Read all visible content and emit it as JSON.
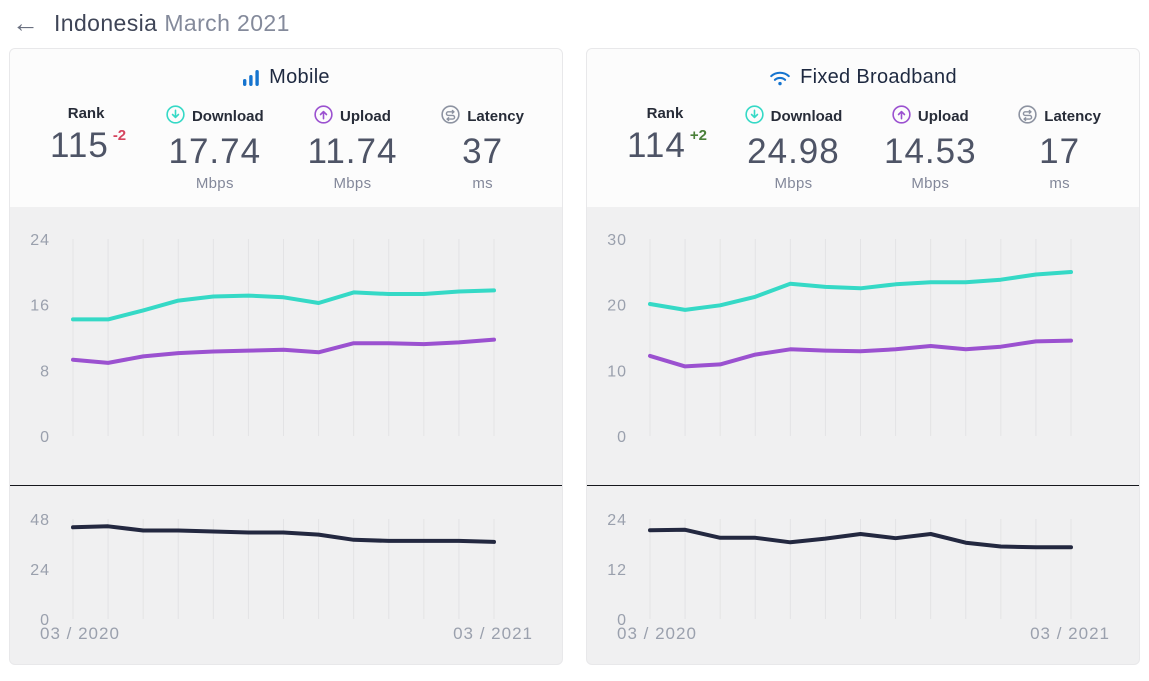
{
  "header": {
    "back_icon": "←",
    "title_country": "Indonesia",
    "title_period": "March 2021"
  },
  "colors": {
    "download": "#35d9c6",
    "upload": "#9b51d0",
    "latency_line": "#232840",
    "brand_blue": "#1574cf",
    "latency_icon_gray": "#8d93a1",
    "grid": "#e3e3e5",
    "axis_label": "#9aa0ad",
    "axis_line": "#16181d",
    "rank_down": "#d5455f",
    "rank_up": "#4a8039"
  },
  "cards": [
    {
      "id": "mobile",
      "title": "Mobile",
      "stats": {
        "rank": {
          "label": "Rank",
          "value": "115",
          "change": "-2",
          "change_dir": "down"
        },
        "download": {
          "label": "Download",
          "value": "17.74",
          "unit": "Mbps"
        },
        "upload": {
          "label": "Upload",
          "value": "11.74",
          "unit": "Mbps"
        },
        "latency": {
          "label": "Latency",
          "value": "37",
          "unit": "ms"
        }
      }
    },
    {
      "id": "fixed",
      "title": "Fixed Broadband",
      "stats": {
        "rank": {
          "label": "Rank",
          "value": "114",
          "change": "+2",
          "change_dir": "up"
        },
        "download": {
          "label": "Download",
          "value": "24.98",
          "unit": "Mbps"
        },
        "upload": {
          "label": "Upload",
          "value": "14.53",
          "unit": "Mbps"
        },
        "latency": {
          "label": "Latency",
          "value": "17",
          "unit": "ms"
        }
      }
    }
  ],
  "chart_data": [
    {
      "id": "mobile-speed",
      "kind": "speed",
      "type": "line",
      "title": "Mobile download / upload speeds over time",
      "unit": "Mbps",
      "ylim": [
        0,
        28
      ],
      "yticks": [
        24,
        16,
        8,
        0
      ],
      "grid": "vertical",
      "x_range": [
        "03 / 2020",
        "03 / 2021"
      ],
      "points_per_series": 13,
      "series": [
        {
          "name": "Download",
          "color": "#35d9c6",
          "values": [
            14.2,
            14.2,
            15.3,
            16.5,
            17.0,
            17.1,
            16.9,
            16.2,
            17.5,
            17.3,
            17.3,
            17.6,
            17.74
          ]
        },
        {
          "name": "Upload",
          "color": "#9b51d0",
          "values": [
            9.3,
            8.9,
            9.7,
            10.1,
            10.3,
            10.4,
            10.5,
            10.2,
            11.3,
            11.3,
            11.2,
            11.4,
            11.74
          ]
        }
      ]
    },
    {
      "id": "mobile-latency",
      "kind": "latency",
      "type": "line",
      "title": "Mobile latency over time",
      "unit": "ms",
      "ylim": [
        0,
        52
      ],
      "yticks": [
        48,
        24,
        0
      ],
      "grid": "vertical",
      "xlabels": [
        "03 / 2020",
        "03 / 2021"
      ],
      "series": [
        {
          "name": "Latency",
          "color": "#232840",
          "values": [
            44,
            44.5,
            42.5,
            42.5,
            42,
            41.5,
            41.5,
            40.5,
            38,
            37.5,
            37.5,
            37.5,
            37
          ]
        }
      ]
    },
    {
      "id": "fixed-speed",
      "kind": "speed",
      "type": "line",
      "title": "Fixed broadband download / upload speeds over time",
      "unit": "Mbps",
      "ylim": [
        0,
        35
      ],
      "yticks": [
        30,
        20,
        10,
        0
      ],
      "grid": "vertical",
      "x_range": [
        "03 / 2020",
        "03 / 2021"
      ],
      "points_per_series": 13,
      "series": [
        {
          "name": "Download",
          "color": "#35d9c6",
          "values": [
            20.1,
            19.2,
            19.9,
            21.2,
            23.2,
            22.7,
            22.5,
            23.1,
            23.4,
            23.4,
            23.8,
            24.6,
            24.98
          ]
        },
        {
          "name": "Upload",
          "color": "#9b51d0",
          "values": [
            12.2,
            10.6,
            10.9,
            12.4,
            13.2,
            13.0,
            12.9,
            13.2,
            13.7,
            13.2,
            13.6,
            14.4,
            14.53
          ]
        }
      ]
    },
    {
      "id": "fixed-latency",
      "kind": "latency",
      "type": "line",
      "title": "Fixed broadband latency over time",
      "unit": "ms",
      "ylim": [
        0,
        26
      ],
      "yticks": [
        24,
        12,
        0
      ],
      "grid": "vertical",
      "xlabels": [
        "03 / 2020",
        "03 / 2021"
      ],
      "series": [
        {
          "name": "Latency",
          "color": "#232840",
          "values": [
            21.3,
            21.4,
            19.5,
            19.5,
            18.4,
            19.3,
            20.4,
            19.4,
            20.4,
            18.3,
            17.4,
            17.2,
            17.2
          ]
        }
      ]
    }
  ]
}
